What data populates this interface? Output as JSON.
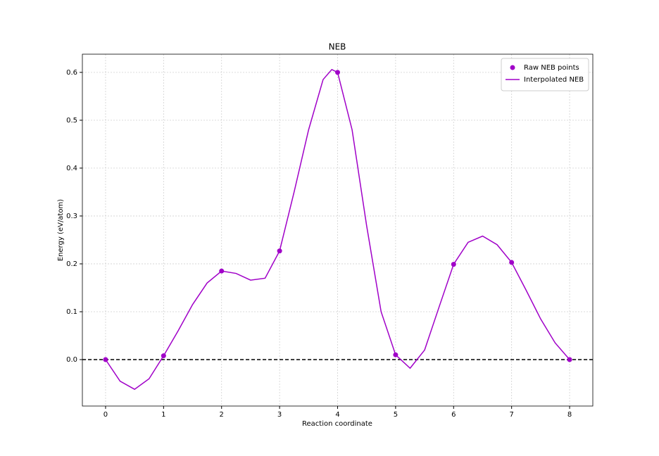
{
  "chart_data": {
    "type": "line",
    "title": "NEB",
    "x_label": "Reaction coordinate",
    "y_label": "Energy (eV/atom)",
    "series": [
      {
        "name": "Raw NEB points",
        "kind": "scatter",
        "color": "#a000c8",
        "x": [
          0,
          1,
          2,
          3,
          4,
          5,
          6,
          7,
          8
        ],
        "values": [
          0,
          0.008,
          0.185,
          0.227,
          0.6,
          0.01,
          0.199,
          0.203,
          0
        ]
      },
      {
        "name": "Interpolated NEB",
        "kind": "line",
        "color": "#a000c8",
        "x": [
          0,
          0.25,
          0.5,
          0.75,
          1,
          1.25,
          1.5,
          1.75,
          2,
          2.25,
          2.5,
          2.75,
          3,
          3.25,
          3.5,
          3.75,
          3.9,
          4,
          4.25,
          4.5,
          4.75,
          5,
          5.25,
          5.5,
          5.75,
          6,
          6.25,
          6.5,
          6.75,
          7,
          7.25,
          7.5,
          7.75,
          8
        ],
        "values": [
          0,
          -0.045,
          -0.062,
          -0.04,
          0.008,
          0.06,
          0.115,
          0.16,
          0.185,
          0.18,
          0.166,
          0.17,
          0.227,
          0.35,
          0.48,
          0.585,
          0.606,
          0.6,
          0.48,
          0.28,
          0.1,
          0.01,
          -0.018,
          0.02,
          0.11,
          0.199,
          0.245,
          0.258,
          0.24,
          0.203,
          0.145,
          0.085,
          0.035,
          0
        ]
      }
    ],
    "reference_line": {
      "y": 0,
      "color": "#000000",
      "dashed": true
    },
    "xlim": [
      -0.4,
      8.4
    ],
    "xticks": [
      0,
      1,
      2,
      3,
      4,
      5,
      6,
      7,
      8
    ],
    "ylim": [
      -0.097,
      0.638
    ],
    "yticks": [
      {
        "value": 0,
        "label": "0.0"
      },
      {
        "value": 0.1,
        "label": "0.1"
      },
      {
        "value": 0.2,
        "label": "0.2"
      },
      {
        "value": 0.3,
        "label": "0.3"
      },
      {
        "value": 0.4,
        "label": "0.4"
      },
      {
        "value": 0.5,
        "label": "0.5"
      },
      {
        "value": 0.6,
        "label": "0.6"
      }
    ],
    "grid": true,
    "legend": "upper-right"
  }
}
